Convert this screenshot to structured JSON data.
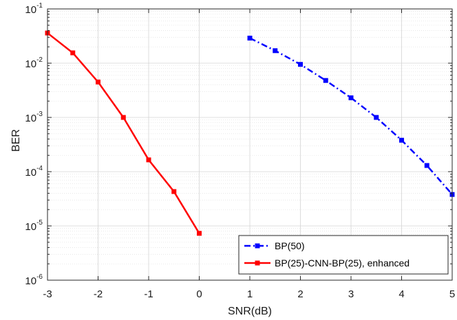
{
  "chart_data": {
    "type": "line",
    "title": "",
    "xlabel": "SNR(dB)",
    "ylabel": "BER",
    "xlim": [
      -3,
      5
    ],
    "ylim": [
      1e-06,
      0.1
    ],
    "yscale": "log",
    "grid": true,
    "minor_grid": true,
    "legend_position": "bottom-right",
    "x_ticks": [
      -3,
      -2,
      -1,
      0,
      1,
      2,
      3,
      4,
      5
    ],
    "y_ticks": [
      {
        "value": 1e-06,
        "base": "10",
        "exp": "-6"
      },
      {
        "value": 1e-05,
        "base": "10",
        "exp": "-5"
      },
      {
        "value": 0.0001,
        "base": "10",
        "exp": "-4"
      },
      {
        "value": 0.001,
        "base": "10",
        "exp": "-3"
      },
      {
        "value": 0.01,
        "base": "10",
        "exp": "-2"
      },
      {
        "value": 0.1,
        "base": "10",
        "exp": "-1"
      }
    ],
    "series": [
      {
        "name": "BP(50)",
        "color": "#0000ff",
        "line_style": "dash-dot",
        "marker": "square",
        "x": [
          1,
          1.5,
          2,
          2.5,
          3,
          3.5,
          4,
          4.5,
          5
        ],
        "y": [
          0.029,
          0.017,
          0.0095,
          0.0048,
          0.0023,
          0.001,
          0.00038,
          0.00013,
          3.8e-05
        ]
      },
      {
        "name": "BP(25)-CNN-BP(25), enhanced",
        "color": "#ff0000",
        "line_style": "solid",
        "marker": "square",
        "x": [
          -3,
          -2.5,
          -2,
          -1.5,
          -1,
          -0.5,
          0
        ],
        "y": [
          0.036,
          0.0155,
          0.0045,
          0.001,
          0.000165,
          4.3e-05,
          7.3e-06
        ]
      }
    ]
  }
}
